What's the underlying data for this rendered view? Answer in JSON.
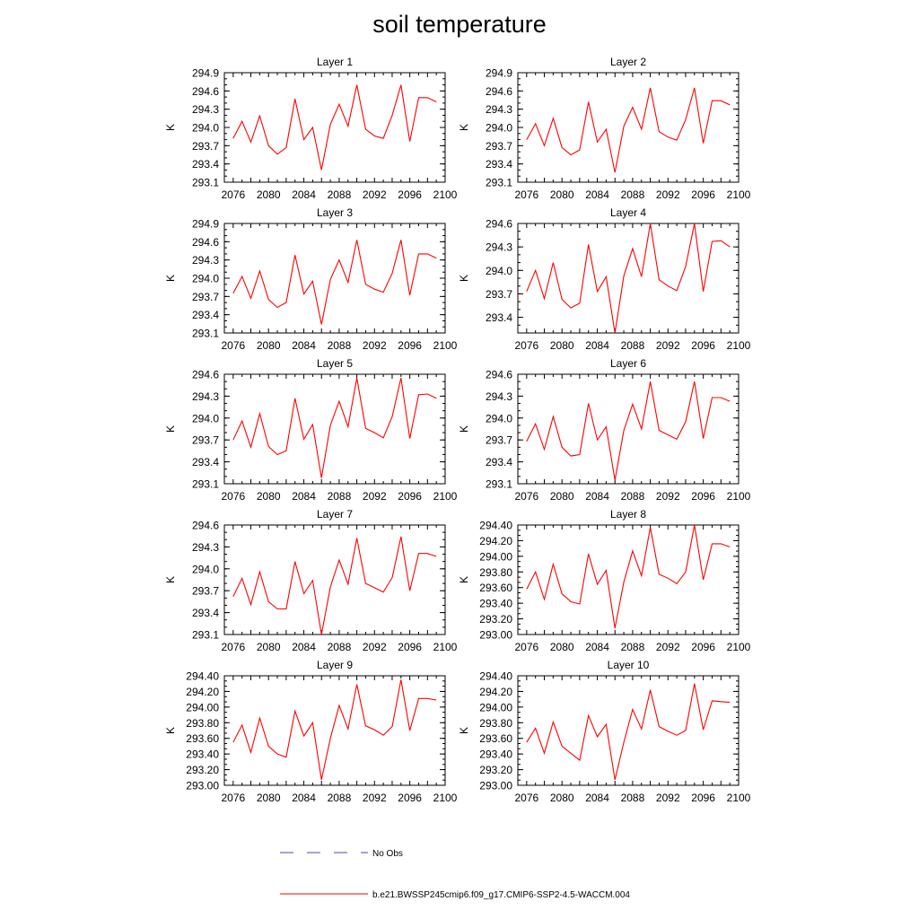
{
  "title": "soil temperature",
  "chart_data": {
    "type": "line",
    "x": [
      2076,
      2077,
      2078,
      2079,
      2080,
      2081,
      2082,
      2083,
      2084,
      2085,
      2086,
      2087,
      2088,
      2089,
      2090,
      2091,
      2092,
      2093,
      2094,
      2095,
      2096,
      2097,
      2098,
      2099
    ],
    "xlim": [
      2075,
      2100
    ],
    "xticks": [
      "2076",
      "2080",
      "2084",
      "2088",
      "2092",
      "2096",
      "2100"
    ],
    "ylabel": "K",
    "panels": [
      {
        "title": "Layer 1",
        "ylim": [
          293.1,
          294.9
        ],
        "yticks": [
          "293.1",
          "293.4",
          "293.7",
          "294.0",
          "294.3",
          "294.6",
          "294.9"
        ],
        "series": [
          {
            "name": "b.e21.BWSSP245cmip6.f09_g17.CMIP6-SSP2-4.5-WACCM.004",
            "values": [
              293.82,
              294.1,
              293.76,
              294.19,
              293.7,
              293.56,
              293.67,
              294.47,
              293.8,
              294.0,
              293.3,
              294.05,
              294.38,
              294.02,
              294.7,
              293.97,
              293.86,
              293.82,
              294.2,
              294.7,
              293.77,
              294.49,
              294.49,
              294.42
            ]
          }
        ]
      },
      {
        "title": "Layer 2",
        "ylim": [
          293.1,
          294.9
        ],
        "yticks": [
          "293.1",
          "293.4",
          "293.7",
          "294.0",
          "294.3",
          "294.6",
          "294.9"
        ],
        "series": [
          {
            "name": "b.e21.BWSSP245cmip6.f09_g17.CMIP6-SSP2-4.5-WACCM.004",
            "values": [
              293.8,
              294.06,
              293.7,
              294.15,
              293.67,
              293.55,
              293.63,
              294.42,
              293.76,
              293.97,
              293.26,
              294.02,
              294.33,
              293.97,
              294.65,
              293.93,
              293.84,
              293.79,
              294.13,
              294.65,
              293.74,
              294.44,
              294.44,
              294.37
            ]
          }
        ]
      },
      {
        "title": "Layer 3",
        "ylim": [
          293.1,
          294.9
        ],
        "yticks": [
          "293.1",
          "293.4",
          "293.7",
          "294.0",
          "294.3",
          "294.6",
          "294.9"
        ],
        "series": [
          {
            "name": "b.e21.BWSSP245cmip6.f09_g17.CMIP6-SSP2-4.5-WACCM.004",
            "values": [
              293.75,
              294.03,
              293.67,
              294.12,
              293.65,
              293.52,
              293.6,
              294.38,
              293.74,
              293.95,
              293.24,
              293.98,
              294.3,
              293.93,
              294.63,
              293.9,
              293.82,
              293.77,
              294.08,
              294.63,
              293.72,
              294.4,
              294.4,
              294.33
            ]
          }
        ]
      },
      {
        "title": "Layer 4",
        "ylim": [
          293.2,
          294.6
        ],
        "yticks": [
          "293.4",
          "293.7",
          "294.0",
          "294.3",
          "294.6"
        ],
        "series": [
          {
            "name": "b.e21.BWSSP245cmip6.f09_g17.CMIP6-SSP2-4.5-WACCM.004",
            "values": [
              293.73,
              294.0,
              293.64,
              294.1,
              293.63,
              293.52,
              293.58,
              294.33,
              293.73,
              293.92,
              293.2,
              293.93,
              294.28,
              293.92,
              294.6,
              293.88,
              293.8,
              293.74,
              294.05,
              294.6,
              293.73,
              294.37,
              294.38,
              294.3
            ]
          }
        ]
      },
      {
        "title": "Layer 5",
        "ylim": [
          293.1,
          294.6
        ],
        "yticks": [
          "293.1",
          "293.4",
          "293.7",
          "294.0",
          "294.3",
          "294.6"
        ],
        "series": [
          {
            "name": "b.e21.BWSSP245cmip6.f09_g17.CMIP6-SSP2-4.5-WACCM.004",
            "values": [
              293.7,
              293.96,
              293.6,
              294.06,
              293.61,
              293.5,
              293.55,
              294.27,
              293.71,
              293.91,
              293.18,
              293.9,
              294.23,
              293.88,
              294.55,
              293.86,
              293.8,
              293.73,
              294.02,
              294.55,
              293.72,
              294.32,
              294.33,
              294.27
            ]
          }
        ]
      },
      {
        "title": "Layer 6",
        "ylim": [
          293.1,
          294.6
        ],
        "yticks": [
          "293.1",
          "293.4",
          "293.7",
          "294.0",
          "294.3",
          "294.6"
        ],
        "series": [
          {
            "name": "b.e21.BWSSP245cmip6.f09_g17.CMIP6-SSP2-4.5-WACCM.004",
            "values": [
              293.68,
              293.92,
              293.57,
              294.02,
              293.6,
              293.48,
              293.5,
              294.2,
              293.7,
              293.88,
              293.15,
              293.83,
              294.19,
              293.85,
              294.5,
              293.83,
              293.77,
              293.71,
              293.95,
              294.5,
              293.72,
              294.28,
              294.28,
              294.23
            ]
          }
        ]
      },
      {
        "title": "Layer 7",
        "ylim": [
          293.1,
          294.6
        ],
        "yticks": [
          "293.1",
          "293.4",
          "293.7",
          "294.0",
          "294.3",
          "294.6"
        ],
        "series": [
          {
            "name": "b.e21.BWSSP245cmip6.f09_g17.CMIP6-SSP2-4.5-WACCM.004",
            "values": [
              293.62,
              293.87,
              293.51,
              293.96,
              293.55,
              293.45,
              293.45,
              294.1,
              293.66,
              293.84,
              293.1,
              293.75,
              294.12,
              293.79,
              294.42,
              293.8,
              293.74,
              293.68,
              293.88,
              294.44,
              293.7,
              294.21,
              294.21,
              294.17
            ]
          }
        ]
      },
      {
        "title": "Layer 8",
        "ylim": [
          293.0,
          294.4
        ],
        "yticks": [
          "293.00",
          "293.20",
          "293.40",
          "293.60",
          "293.80",
          "294.00",
          "294.20",
          "294.40"
        ],
        "series": [
          {
            "name": "b.e21.BWSSP245cmip6.f09_g17.CMIP6-SSP2-4.5-WACCM.004",
            "values": [
              293.58,
              293.8,
              293.45,
              293.9,
              293.52,
              293.42,
              293.39,
              294.03,
              293.64,
              293.82,
              293.08,
              293.67,
              294.07,
              293.75,
              294.37,
              293.77,
              293.72,
              293.65,
              293.8,
              294.4,
              293.7,
              294.16,
              294.16,
              294.12
            ]
          }
        ]
      },
      {
        "title": "Layer 9",
        "ylim": [
          293.0,
          294.4
        ],
        "yticks": [
          "293.00",
          "293.20",
          "293.40",
          "293.60",
          "293.80",
          "294.00",
          "294.20",
          "294.40"
        ],
        "series": [
          {
            "name": "b.e21.BWSSP245cmip6.f09_g17.CMIP6-SSP2-4.5-WACCM.004",
            "values": [
              293.55,
              293.77,
              293.42,
              293.86,
              293.5,
              293.4,
              293.36,
              293.95,
              293.63,
              293.8,
              293.07,
              293.6,
              294.02,
              293.72,
              294.29,
              293.76,
              293.71,
              293.64,
              293.75,
              294.35,
              293.7,
              294.11,
              294.11,
              294.09
            ]
          }
        ]
      },
      {
        "title": "Layer 10",
        "ylim": [
          293.0,
          294.4
        ],
        "yticks": [
          "293.00",
          "293.20",
          "293.40",
          "293.60",
          "293.80",
          "294.00",
          "294.20",
          "294.40"
        ],
        "series": [
          {
            "name": "b.e21.BWSSP245cmip6.f09_g17.CMIP6-SSP2-4.5-WACCM.004",
            "values": [
              293.55,
              293.73,
              293.41,
              293.81,
              293.5,
              293.41,
              293.32,
              293.89,
              293.62,
              293.78,
              293.07,
              293.55,
              293.97,
              293.72,
              294.22,
              293.75,
              293.69,
              293.64,
              293.7,
              294.3,
              293.71,
              294.08,
              294.07,
              294.06
            ]
          }
        ]
      }
    ],
    "legend": [
      {
        "label": "No Obs",
        "style": "dashed",
        "color": "#4a4aa8"
      },
      {
        "label": "b.e21.BWSSP245cmip6.f09_g17.CMIP6-SSP2-4.5-WACCM.004",
        "style": "solid",
        "color": "#ff0000"
      }
    ],
    "legend_placement": "bottom",
    "grid": false
  }
}
